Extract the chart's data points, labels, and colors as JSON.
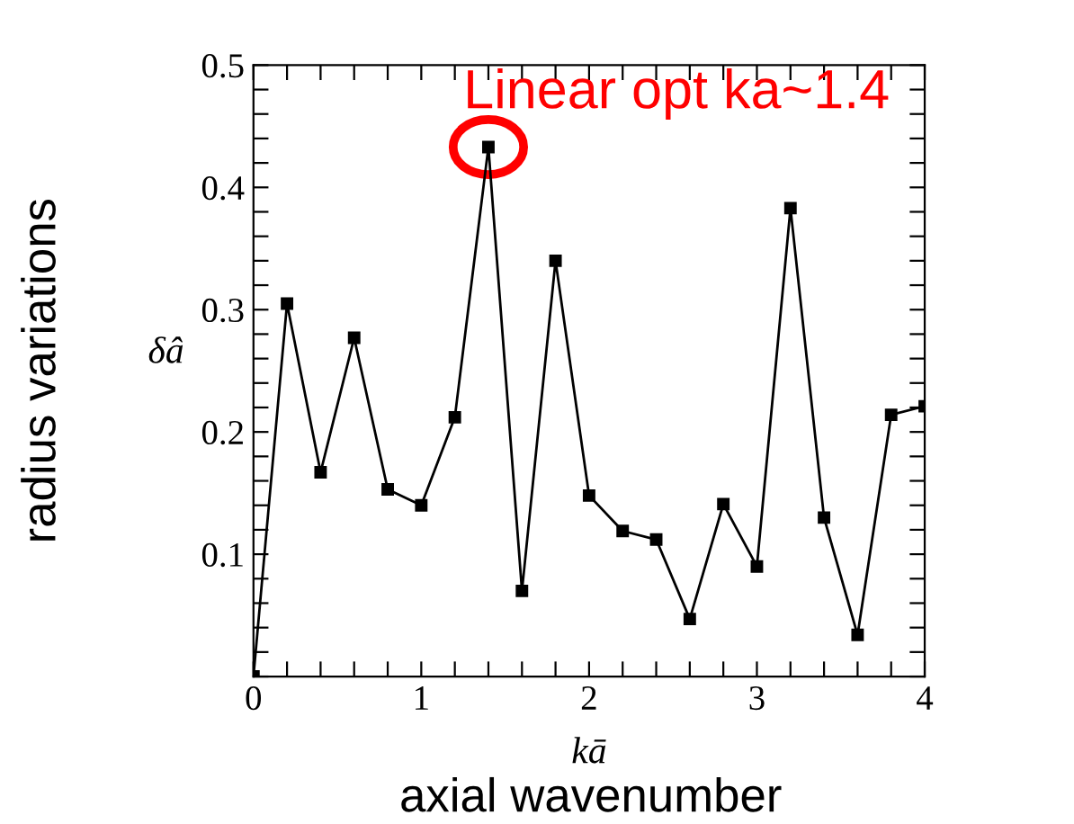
{
  "chart_data": {
    "type": "line",
    "xlabel": "kā",
    "ylabel": "δâ",
    "x": [
      0,
      0.2,
      0.4,
      0.6,
      0.8,
      1.0,
      1.2,
      1.4,
      1.6,
      1.8,
      2.0,
      2.2,
      2.4,
      2.6,
      2.8,
      3.0,
      3.2,
      3.4,
      3.6,
      3.8,
      4.0
    ],
    "series": [
      {
        "color": "#000000",
        "values": [
          0,
          0.305,
          0.167,
          0.277,
          0.153,
          0.14,
          0.212,
          0.433,
          0.07,
          0.34,
          0.148,
          0.119,
          0.112,
          0.047,
          0.141,
          0.09,
          0.383,
          0.13,
          0.034,
          0.214,
          0.221
        ]
      }
    ],
    "xlim": [
      0,
      4
    ],
    "ylim": [
      0,
      0.5
    ],
    "xticks": [
      0,
      {
        "value": 0.2,
        "label": null
      },
      {
        "value": 0.4,
        "label": null
      },
      {
        "value": 0.6,
        "label": null
      },
      {
        "value": 0.8,
        "label": null
      },
      1,
      {
        "value": 1.2,
        "label": null
      },
      {
        "value": 1.4,
        "label": null
      },
      {
        "value": 1.6,
        "label": null
      },
      {
        "value": 1.8,
        "label": null
      },
      2,
      {
        "value": 2.2,
        "label": null
      },
      {
        "value": 2.4,
        "label": null
      },
      {
        "value": 2.6,
        "label": null
      },
      {
        "value": 2.8,
        "label": null
      },
      3,
      {
        "value": 3.2,
        "label": null
      },
      {
        "value": 3.4,
        "label": null
      },
      {
        "value": 3.6,
        "label": null
      },
      {
        "value": 3.8,
        "label": null
      },
      4
    ],
    "yticks": [
      {
        "value": 0,
        "label": null
      },
      {
        "value": 0.02,
        "label": null
      },
      {
        "value": 0.04,
        "label": null
      },
      {
        "value": 0.06,
        "label": null
      },
      {
        "value": 0.08,
        "label": null
      },
      0.1,
      {
        "value": 0.12,
        "label": null
      },
      {
        "value": 0.14,
        "label": null
      },
      {
        "value": 0.16,
        "label": null
      },
      {
        "value": 0.18,
        "label": null
      },
      0.2,
      {
        "value": 0.22,
        "label": null
      },
      {
        "value": 0.24,
        "label": null
      },
      {
        "value": 0.26,
        "label": null
      },
      {
        "value": 0.28,
        "label": null
      },
      0.3,
      {
        "value": 0.32,
        "label": null
      },
      {
        "value": 0.34,
        "label": null
      },
      {
        "value": 0.36,
        "label": null
      },
      {
        "value": 0.38,
        "label": null
      },
      0.4,
      {
        "value": 0.42,
        "label": null
      },
      {
        "value": 0.44,
        "label": null
      },
      {
        "value": 0.46,
        "label": null
      },
      {
        "value": 0.48,
        "label": null
      },
      0.5
    ],
    "marker": "square",
    "line_style": "solid",
    "grid": false,
    "legend": false,
    "annotations": [
      {
        "text": "Linear opt ka~1.4",
        "x": 1.4,
        "y": 0.433
      },
      "radius variations",
      "axial wavenumber"
    ]
  }
}
